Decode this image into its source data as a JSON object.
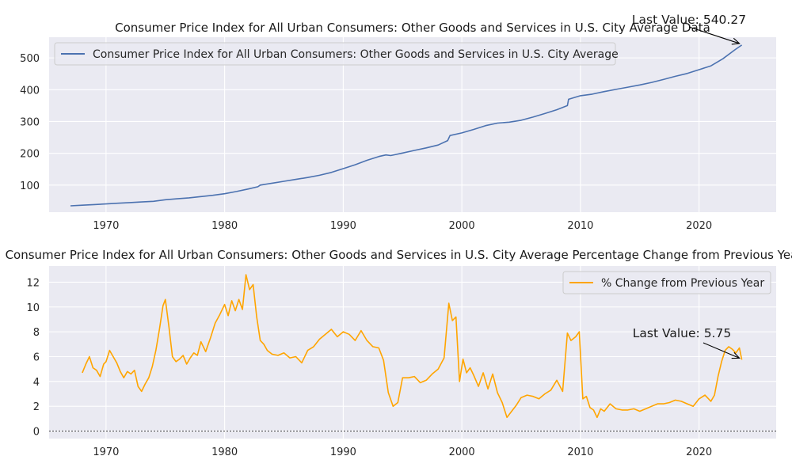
{
  "chart_data": [
    {
      "type": "line",
      "title": "Consumer Price Index for All Urban Consumers: Other Goods and Services in U.S. City Average Data",
      "xlabel": "",
      "ylabel": "",
      "xlim": [
        1965.2,
        2026.5
      ],
      "ylim": [
        15,
        565
      ],
      "xticks": [
        1970,
        1980,
        1990,
        2000,
        2010,
        2020
      ],
      "yticks": [
        100,
        200,
        300,
        400,
        500
      ],
      "grid": true,
      "legend": "upper-left",
      "series": [
        {
          "name": "Consumer Price Index for All Urban Consumers: Other Goods and Services in U.S. City Average",
          "color": "#4c72b0",
          "x": [
            1967.0,
            1968.0,
            1969.0,
            1970.0,
            1971.0,
            1972.0,
            1973.0,
            1974.0,
            1975.0,
            1976.0,
            1977.0,
            1978.0,
            1979.0,
            1980.0,
            1981.0,
            1982.0,
            1982.8,
            1983.0,
            1984.0,
            1985.0,
            1986.0,
            1987.0,
            1988.0,
            1989.0,
            1990.0,
            1991.0,
            1992.0,
            1993.0,
            1993.6,
            1994.0,
            1995.0,
            1996.0,
            1997.0,
            1998.0,
            1998.8,
            1999.0,
            2000.0,
            2001.0,
            2002.0,
            2003.0,
            2004.0,
            2005.0,
            2006.0,
            2007.0,
            2008.0,
            2008.9,
            2009.0,
            2010.0,
            2011.0,
            2012.0,
            2013.0,
            2014.0,
            2015.0,
            2016.0,
            2017.0,
            2018.0,
            2019.0,
            2020.0,
            2021.0,
            2022.0,
            2023.0,
            2023.6
          ],
          "values": [
            35,
            37,
            39,
            41,
            43,
            45,
            47,
            49,
            54,
            57,
            60,
            64,
            68,
            73,
            80,
            88,
            95,
            100,
            106,
            112,
            118,
            124,
            131,
            140,
            152,
            164,
            178,
            190,
            195,
            193,
            201,
            209,
            217,
            226,
            240,
            256,
            264,
            275,
            287,
            295,
            298,
            304,
            314,
            325,
            337,
            350,
            370,
            381,
            386,
            394,
            401,
            408,
            415,
            423,
            432,
            442,
            451,
            463,
            475,
            497,
            525,
            540.27
          ]
        }
      ],
      "annotation": {
        "label": "Last Value:",
        "value": "540.27",
        "x": 2023.6,
        "y": 540.27
      }
    },
    {
      "type": "line",
      "title": "Consumer Price Index for All Urban Consumers: Other Goods and Services in U.S. City Average Percentage Change from Previous Year",
      "xlabel": "",
      "ylabel": "",
      "xlim": [
        1965.2,
        2026.5
      ],
      "ylim": [
        -0.6,
        13.3
      ],
      "xticks": [
        1970,
        1980,
        1990,
        2000,
        2010,
        2020
      ],
      "yticks": [
        0,
        2,
        4,
        6,
        8,
        10,
        12
      ],
      "grid": true,
      "legend": "upper-right",
      "reference_line": 0,
      "series": [
        {
          "name": "% Change from Previous Year",
          "color": "#ffa500",
          "x": [
            1968.0,
            1968.3,
            1968.6,
            1968.9,
            1969.2,
            1969.5,
            1969.8,
            1970.0,
            1970.3,
            1970.6,
            1970.9,
            1971.2,
            1971.5,
            1971.8,
            1972.1,
            1972.4,
            1972.7,
            1973.0,
            1973.3,
            1973.6,
            1973.9,
            1974.2,
            1974.5,
            1974.8,
            1975.0,
            1975.3,
            1975.6,
            1975.9,
            1976.2,
            1976.5,
            1976.8,
            1977.1,
            1977.4,
            1977.7,
            1978.0,
            1978.4,
            1978.8,
            1979.2,
            1979.6,
            1980.0,
            1980.3,
            1980.6,
            1980.9,
            1981.2,
            1981.5,
            1981.8,
            1982.1,
            1982.4,
            1982.7,
            1983.0,
            1983.3,
            1983.6,
            1984.0,
            1984.5,
            1985.0,
            1985.5,
            1986.0,
            1986.5,
            1987.0,
            1987.5,
            1988.0,
            1988.5,
            1989.0,
            1989.5,
            1990.0,
            1990.5,
            1991.0,
            1991.5,
            1992.0,
            1992.5,
            1993.0,
            1993.4,
            1993.8,
            1994.2,
            1994.6,
            1995.0,
            1995.5,
            1996.0,
            1996.5,
            1997.0,
            1997.5,
            1998.0,
            1998.5,
            1998.9,
            1999.2,
            1999.5,
            1999.8,
            2000.1,
            2000.4,
            2000.7,
            2001.0,
            2001.4,
            2001.8,
            2002.2,
            2002.6,
            2003.0,
            2003.4,
            2003.8,
            2004.2,
            2004.6,
            2005.0,
            2005.5,
            2006.0,
            2006.5,
            2007.0,
            2007.5,
            2008.0,
            2008.5,
            2008.9,
            2009.2,
            2009.6,
            2009.9,
            2010.2,
            2010.5,
            2010.8,
            2011.1,
            2011.4,
            2011.7,
            2012.0,
            2012.5,
            2013.0,
            2013.5,
            2014.0,
            2014.5,
            2015.0,
            2015.5,
            2016.0,
            2016.5,
            2017.0,
            2017.5,
            2018.0,
            2018.5,
            2019.0,
            2019.5,
            2020.0,
            2020.5,
            2021.0,
            2021.3,
            2021.6,
            2021.9,
            2022.2,
            2022.5,
            2022.8,
            2023.1,
            2023.4,
            2023.6
          ],
          "values": [
            4.7,
            5.4,
            6.0,
            5.1,
            4.9,
            4.4,
            5.4,
            5.6,
            6.5,
            6.0,
            5.5,
            4.8,
            4.3,
            4.8,
            4.6,
            4.9,
            3.6,
            3.2,
            3.8,
            4.3,
            5.2,
            6.5,
            8.2,
            10.1,
            10.6,
            8.4,
            6.0,
            5.6,
            5.8,
            6.1,
            5.4,
            5.9,
            6.3,
            6.1,
            7.2,
            6.4,
            7.5,
            8.7,
            9.4,
            10.2,
            9.3,
            10.5,
            9.7,
            10.6,
            9.8,
            12.6,
            11.4,
            11.8,
            9.2,
            7.3,
            7.0,
            6.5,
            6.2,
            6.1,
            6.3,
            5.9,
            6.0,
            5.5,
            6.5,
            6.8,
            7.4,
            7.8,
            8.2,
            7.6,
            8.0,
            7.8,
            7.3,
            8.1,
            7.3,
            6.8,
            6.7,
            5.7,
            3.1,
            2.0,
            2.3,
            4.3,
            4.3,
            4.4,
            3.9,
            4.1,
            4.6,
            5.0,
            5.9,
            10.3,
            8.9,
            9.2,
            4.0,
            5.8,
            4.7,
            5.1,
            4.5,
            3.6,
            4.7,
            3.4,
            4.6,
            3.1,
            2.3,
            1.1,
            1.6,
            2.1,
            2.7,
            2.9,
            2.8,
            2.6,
            3.0,
            3.3,
            4.1,
            3.2,
            7.9,
            7.3,
            7.6,
            8.0,
            2.6,
            2.8,
            1.9,
            1.7,
            1.1,
            1.8,
            1.6,
            2.2,
            1.8,
            1.7,
            1.7,
            1.8,
            1.6,
            1.8,
            2.0,
            2.2,
            2.2,
            2.3,
            2.5,
            2.4,
            2.2,
            2.0,
            2.6,
            2.9,
            2.4,
            2.9,
            4.4,
            5.6,
            6.5,
            6.8,
            6.6,
            6.3,
            6.7,
            5.75
          ]
        }
      ],
      "annotation": {
        "label": "Last Value:",
        "value": "5.75",
        "x": 2023.6,
        "y": 5.75
      }
    }
  ]
}
